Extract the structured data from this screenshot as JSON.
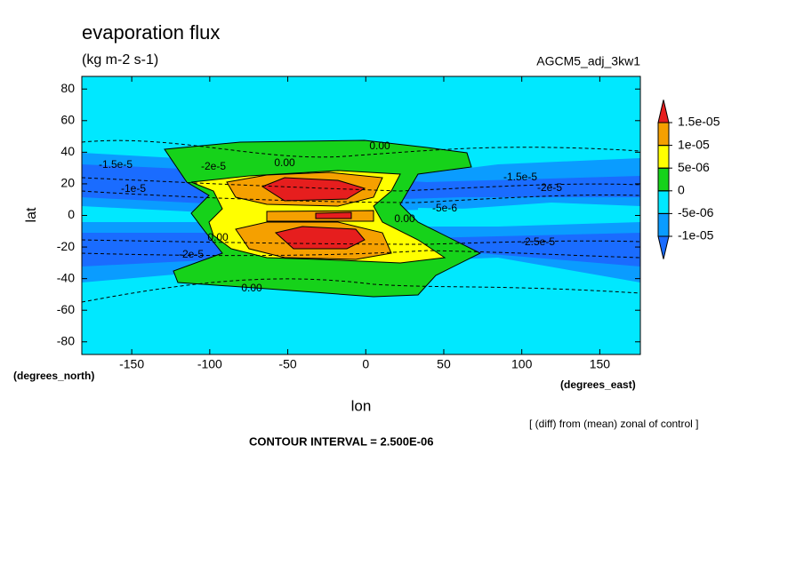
{
  "chart_data": {
    "type": "contour",
    "title": "evaporation flux",
    "subtitle": "(kg m-2 s-1)",
    "dataset": "AGCM5_adj_3kw1",
    "x_label": "lon",
    "y_label": "lat",
    "x_units": "(degrees_east)",
    "y_units": "(degrees_north)",
    "note": "[ (diff) from (mean) zonal of control ]",
    "contour_interval": "CONTOUR INTERVAL = 2.500E-06",
    "xlim": [
      -182,
      176
    ],
    "ylim": [
      -88,
      88
    ],
    "xticks": [
      -150,
      -100,
      -50,
      0,
      50,
      100,
      150
    ],
    "yticks": [
      -80,
      -60,
      -40,
      -20,
      0,
      20,
      40,
      60,
      80
    ],
    "contour_labels": [
      "0.00",
      "0.00",
      "0.00",
      "0.00",
      "0.00",
      "-1.5e-5",
      "-2e-5",
      "-1e-5",
      "-1.5e-5",
      "-2e-5",
      "-2.5e-5",
      "-2e-5",
      "-5e-6"
    ],
    "colorbar": {
      "levels": [
        {
          "value": -1e-05,
          "label": "-1e-05"
        },
        {
          "value": -5e-06,
          "label": "-5e-06"
        },
        {
          "value": 0,
          "label": "0"
        },
        {
          "value": 5e-06,
          "label": "5e-06"
        },
        {
          "value": 1e-05,
          "label": "1e-05"
        },
        {
          "value": 1.5e-05,
          "label": "1.5e-05"
        }
      ],
      "colors": [
        "#1a6cff",
        "#0a9cff",
        "#00e8ff",
        "#16d21a",
        "#ffff00",
        "#f5a000",
        "#e61e1e"
      ]
    }
  }
}
